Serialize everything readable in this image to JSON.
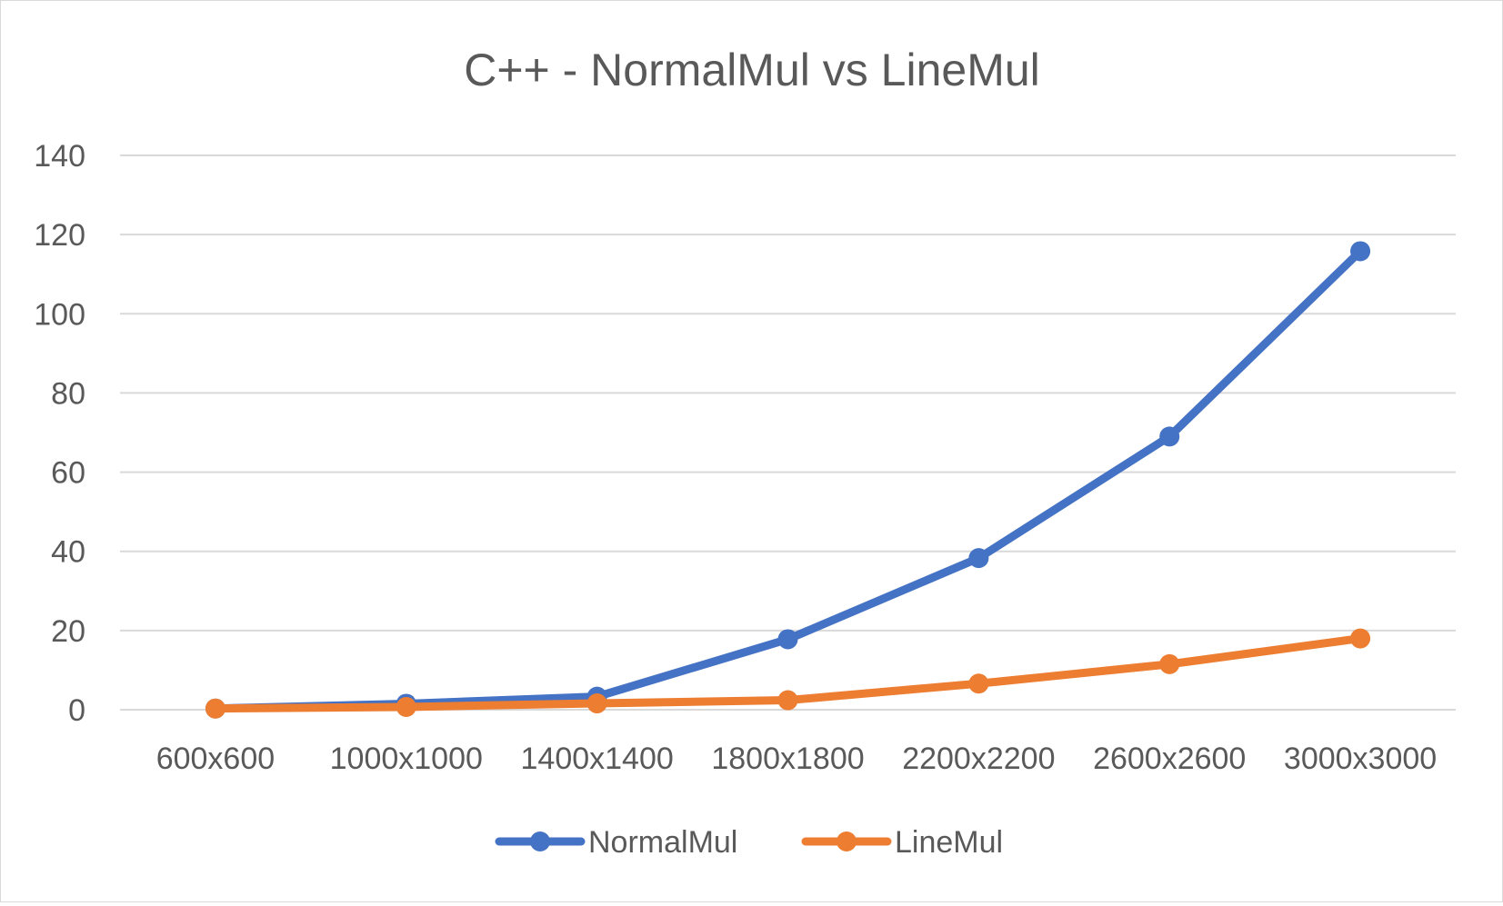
{
  "chart_data": {
    "type": "line",
    "title": "C++ - NormalMul vs LineMul",
    "xlabel": "",
    "ylabel": "",
    "categories": [
      "600x600",
      "1000x1000",
      "1400x1400",
      "1800x1800",
      "2200x2200",
      "2600x2600",
      "3000x3000"
    ],
    "ylim": [
      0,
      140
    ],
    "yticks": [
      0,
      20,
      40,
      60,
      80,
      100,
      120,
      140
    ],
    "yticks_labels": [
      "0",
      "20",
      "40",
      "60",
      "80",
      "100",
      "120",
      "140"
    ],
    "grid": true,
    "legend_position": "bottom",
    "series": [
      {
        "name": "NormalMul",
        "color": "#4472C4",
        "values": [
          0.3,
          1.5,
          3.3,
          17.8,
          38.3,
          69.0,
          115.8
        ]
      },
      {
        "name": "LineMul",
        "color": "#ED7D31",
        "values": [
          0.3,
          0.7,
          1.6,
          2.4,
          6.6,
          11.5,
          18.0
        ]
      }
    ]
  }
}
